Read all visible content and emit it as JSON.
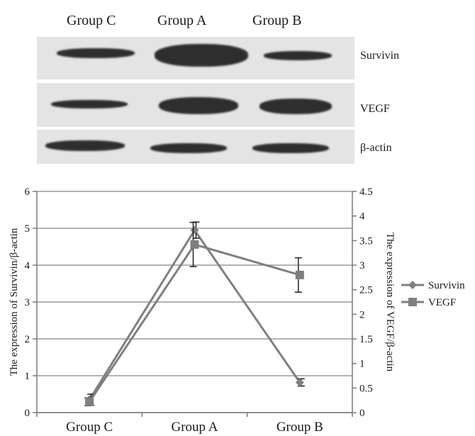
{
  "blot": {
    "lanes": [
      "Group C",
      "Group A",
      "Group B"
    ],
    "rows": [
      {
        "label": "Survivin",
        "intensity": [
          0.55,
          1.0,
          0.45
        ]
      },
      {
        "label": "VEGF",
        "intensity": [
          0.5,
          0.95,
          0.85
        ]
      },
      {
        "label": "β-actin",
        "intensity": [
          0.7,
          0.7,
          0.7
        ]
      }
    ]
  },
  "chart_data": {
    "type": "line",
    "categories": [
      "Group C",
      "Group A",
      "Group B"
    ],
    "series": [
      {
        "name": "Survivin",
        "axis": "left",
        "marker": "diamond",
        "color": "#808080",
        "values": [
          0.35,
          4.95,
          0.82
        ],
        "errors": [
          0.15,
          0.22,
          0.1
        ]
      },
      {
        "name": "VEGF",
        "axis": "right",
        "marker": "square",
        "color": "#7f7f7f",
        "values": [
          0.22,
          3.42,
          2.8
        ],
        "errors": [
          0.08,
          0.45,
          0.35
        ]
      }
    ],
    "ylabel": "The expression of Survivin/β-actin",
    "y2label": "The expression of VEGF/β-actin",
    "ylim": [
      0,
      6
    ],
    "y2lim": [
      0,
      4.5
    ],
    "yticks": [
      "0",
      "1",
      "2",
      "3",
      "4",
      "5",
      "6"
    ],
    "y2ticks": [
      "0",
      "0.5",
      "1",
      "1.5",
      "2",
      "2.5",
      "3",
      "3.5",
      "4",
      "4.5"
    ],
    "grid": true,
    "legend": "right"
  }
}
